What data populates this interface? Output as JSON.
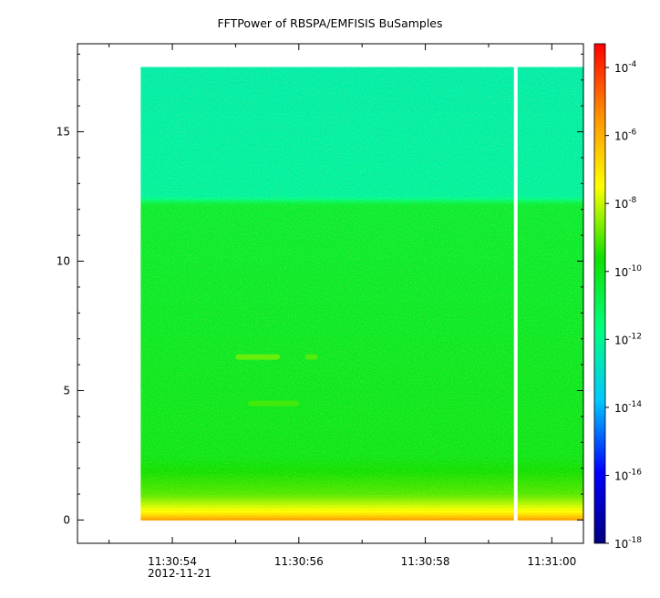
{
  "chart_data": {
    "type": "heatmap",
    "title": "FFTPower of RBSPA/EMFISIS  BuSamples",
    "xlabel": "",
    "ylabel": "",
    "date_label": "2012-11-21",
    "x_ticks": [
      {
        "t": 54.0,
        "label": "11:30:54"
      },
      {
        "t": 56.0,
        "label": "11:30:56"
      },
      {
        "t": 58.0,
        "label": "11:30:58"
      },
      {
        "t": 60.0,
        "label": "11:31:00"
      }
    ],
    "x_range_seconds": [
      52.5,
      60.5
    ],
    "data_time_range_seconds": [
      53.5,
      60.5
    ],
    "gap_time_seconds": 59.43,
    "y_ticks": [
      0,
      5,
      10,
      15
    ],
    "y_range": [
      -0.9,
      18.4
    ],
    "data_freq_range": [
      0,
      17.5
    ],
    "colorbar": {
      "scale": "log",
      "range": [
        -18,
        -3.3
      ],
      "ticks": [
        {
          "exp": -4,
          "base": "10",
          "sup": "-4"
        },
        {
          "exp": -6,
          "base": "10",
          "sup": "-6"
        },
        {
          "exp": -8,
          "base": "10",
          "sup": "-8"
        },
        {
          "exp": -10,
          "base": "10",
          "sup": "-10"
        },
        {
          "exp": -12,
          "base": "10",
          "sup": "-12"
        },
        {
          "exp": -14,
          "base": "10",
          "sup": "-14"
        },
        {
          "exp": -16,
          "base": "10",
          "sup": "-16"
        },
        {
          "exp": -18,
          "base": "10",
          "sup": "-18"
        }
      ],
      "colors": [
        "#000080",
        "#0000ff",
        "#00c8ff",
        "#00ff80",
        "#10e000",
        "#ffff00",
        "#ff9000",
        "#ff0000"
      ]
    },
    "power_profile": [
      {
        "f": 0.0,
        "log_power": -5.5
      },
      {
        "f": 0.3,
        "log_power": -7.3
      },
      {
        "f": 1.0,
        "log_power": -9.0
      },
      {
        "f": 2.5,
        "log_power": -10.0
      },
      {
        "f": 12.2,
        "log_power": -10.4
      },
      {
        "f": 12.5,
        "log_power": -12.2
      },
      {
        "f": 17.5,
        "log_power": -12.4
      }
    ],
    "features": [
      {
        "f": 6.3,
        "t_start": 55.0,
        "t_end": 55.7,
        "log_power": -8.5
      },
      {
        "f": 6.3,
        "t_start": 56.1,
        "t_end": 56.3,
        "log_power": -8.8
      },
      {
        "f": 4.5,
        "t_start": 55.2,
        "t_end": 56.0,
        "log_power": -9.0
      }
    ]
  }
}
